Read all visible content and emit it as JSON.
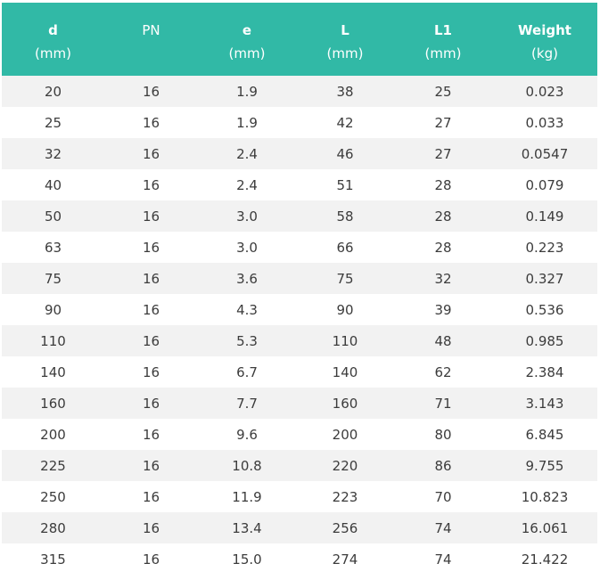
{
  "table": {
    "headers": [
      {
        "main": "d",
        "unit": "(mm)",
        "bold": true
      },
      {
        "main": "PN",
        "unit": "",
        "bold": false
      },
      {
        "main": "e",
        "unit": "(mm)",
        "bold": true
      },
      {
        "main": "L",
        "unit": "(mm)",
        "bold": true
      },
      {
        "main": "L1",
        "unit": "(mm)",
        "bold": true
      },
      {
        "main": "Weight",
        "unit": "(kg)",
        "bold": true
      }
    ],
    "rows": [
      [
        "20",
        "16",
        "1.9",
        "38",
        "25",
        "0.023"
      ],
      [
        "25",
        "16",
        "1.9",
        "42",
        "27",
        "0.033"
      ],
      [
        "32",
        "16",
        "2.4",
        "46",
        "27",
        "0.0547"
      ],
      [
        "40",
        "16",
        "2.4",
        "51",
        "28",
        "0.079"
      ],
      [
        "50",
        "16",
        "3.0",
        "58",
        "28",
        "0.149"
      ],
      [
        "63",
        "16",
        "3.0",
        "66",
        "28",
        "0.223"
      ],
      [
        "75",
        "16",
        "3.6",
        "75",
        "32",
        "0.327"
      ],
      [
        "90",
        "16",
        "4.3",
        "90",
        "39",
        "0.536"
      ],
      [
        "110",
        "16",
        "5.3",
        "110",
        "48",
        "0.985"
      ],
      [
        "140",
        "16",
        "6.7",
        "140",
        "62",
        "2.384"
      ],
      [
        "160",
        "16",
        "7.7",
        "160",
        "71",
        "3.143"
      ],
      [
        "200",
        "16",
        "9.6",
        "200",
        "80",
        "6.845"
      ],
      [
        "225",
        "16",
        "10.8",
        "220",
        "86",
        "9.755"
      ],
      [
        "250",
        "16",
        "11.9",
        "223",
        "70",
        "10.823"
      ],
      [
        "280",
        "16",
        "13.4",
        "256",
        "74",
        "16.061"
      ],
      [
        "315",
        "16",
        "15.0",
        "274",
        "74",
        "21.422"
      ]
    ]
  },
  "colors": {
    "header_bg": "#31b9a6",
    "header_text": "#ffffff",
    "row_stripe": "#f2f2f2",
    "cell_text": "#3c3c3c"
  }
}
